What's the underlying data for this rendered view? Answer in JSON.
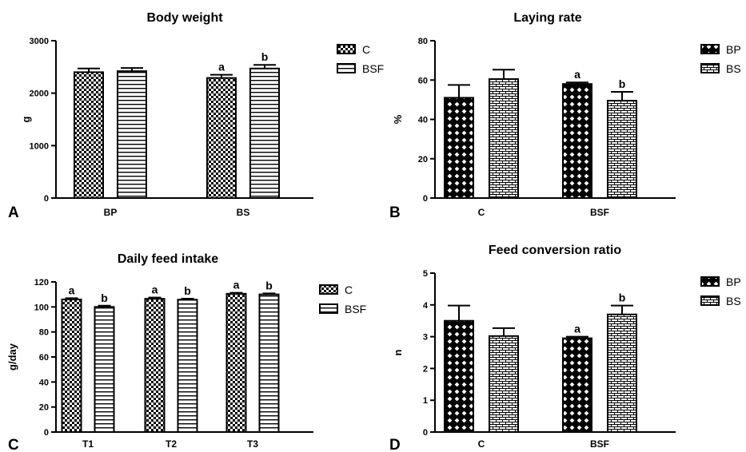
{
  "chart_data": [
    {
      "type": "bar",
      "panel": "A",
      "title": "Body weight",
      "ylabel": "g",
      "xlabel": "",
      "ylim": [
        0,
        3000
      ],
      "yticks": [
        0,
        1000,
        2000,
        3000
      ],
      "categories": [
        "BP",
        "BS"
      ],
      "series": [
        {
          "name": "C",
          "pattern": "checker",
          "values": [
            2400,
            2290
          ],
          "errors": [
            70,
            60
          ],
          "labels": [
            "",
            "a"
          ]
        },
        {
          "name": "BSF",
          "pattern": "hlines",
          "values": [
            2420,
            2470
          ],
          "errors": [
            60,
            70
          ],
          "labels": [
            "",
            "b"
          ]
        }
      ]
    },
    {
      "type": "bar",
      "panel": "B",
      "title": "Laying rate",
      "ylabel": "%",
      "xlabel": "",
      "ylim": [
        0,
        80
      ],
      "yticks": [
        0,
        20,
        40,
        60,
        80
      ],
      "categories": [
        "C",
        "BSF"
      ],
      "series": [
        {
          "name": "BP",
          "pattern": "diamond",
          "values": [
            51,
            58
          ],
          "errors": [
            6.5,
            0.8
          ],
          "labels": [
            "",
            "a"
          ]
        },
        {
          "name": "BS",
          "pattern": "brick",
          "values": [
            60.5,
            49.5
          ],
          "errors": [
            4.8,
            4.5
          ],
          "labels": [
            "",
            "b"
          ]
        }
      ]
    },
    {
      "type": "bar",
      "panel": "C",
      "title": "Daily feed intake",
      "ylabel": "g/day",
      "xlabel": "",
      "ylim": [
        0,
        120
      ],
      "yticks": [
        0,
        20,
        40,
        60,
        80,
        100,
        120
      ],
      "categories": [
        "T1",
        "T2",
        "T3"
      ],
      "series": [
        {
          "name": "C",
          "pattern": "checker",
          "values": [
            106,
            106.5,
            110.5
          ],
          "errors": [
            1,
            1,
            0.8
          ],
          "labels": [
            "a",
            "a",
            "a"
          ]
        },
        {
          "name": "BSF",
          "pattern": "hlines",
          "values": [
            100,
            105.8,
            110
          ],
          "errors": [
            1,
            0.8,
            0.8
          ],
          "labels": [
            "b",
            "b",
            "b"
          ]
        }
      ]
    },
    {
      "type": "bar",
      "panel": "D",
      "title": "Feed conversion ratio",
      "ylabel": "n",
      "xlabel": "",
      "ylim": [
        0,
        5
      ],
      "yticks": [
        0,
        1,
        2,
        3,
        4,
        5
      ],
      "categories": [
        "C",
        "BSF"
      ],
      "series": [
        {
          "name": "BP",
          "pattern": "diamond",
          "values": [
            3.5,
            2.95
          ],
          "errors": [
            0.48,
            0.05
          ],
          "labels": [
            "",
            "a"
          ]
        },
        {
          "name": "BS",
          "pattern": "brick",
          "values": [
            3.02,
            3.7
          ],
          "errors": [
            0.25,
            0.28
          ],
          "labels": [
            "",
            "b"
          ]
        }
      ]
    }
  ]
}
